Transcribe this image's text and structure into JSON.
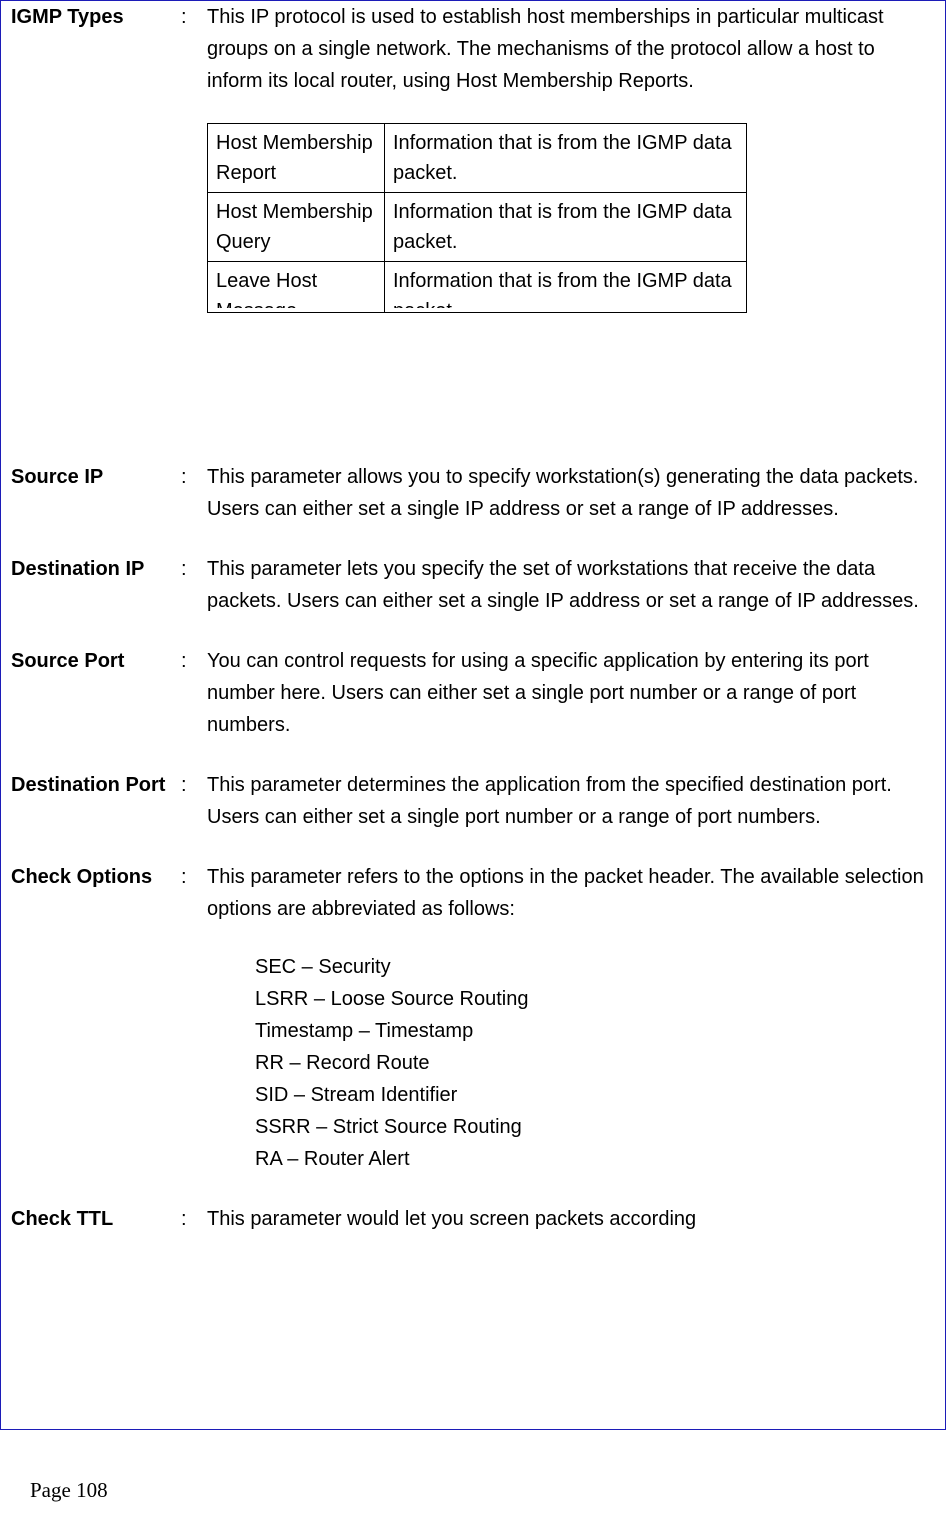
{
  "definitions": {
    "igmpTypes": {
      "label": "IGMP Types",
      "text": "This IP protocol is used to establish host memberships in particular multicast groups on a single network. The mechanisms of the protocol allow a host to inform its local router, using Host Membership Reports.",
      "table": {
        "rows": [
          {
            "c1": "Host Membership Report",
            "c2": "Information that is from the IGMP data packet."
          },
          {
            "c1": "Host Membership Query",
            "c2": "Information that is from the IGMP data packet."
          },
          {
            "c1": "Leave Host Message",
            "c2": "Information that is from the IGMP data packet."
          }
        ]
      }
    },
    "sourceIp": {
      "label": "Source IP",
      "text": "This parameter allows you to specify workstation(s) generating the data packets. Users can either set a single IP address or set a range of IP addresses."
    },
    "destIp": {
      "label": "Destination IP",
      "text": "This parameter lets you specify the set of workstations that receive the data packets. Users can either set a single IP address or set a range of IP addresses."
    },
    "sourcePort": {
      "label": "Source Port",
      "text": "You can control requests for using a specific application by entering its port number here. Users can either set a single port number or a range of port numbers."
    },
    "destPort": {
      "label": "Destination Port",
      "text": "This parameter determines the application from the specified destination port. Users can either set a single port number or a range of port numbers."
    },
    "checkOptions": {
      "label": "Check Options",
      "text": "This parameter refers to the options in the packet header. The available selection options are abbreviated as follows:",
      "list": [
        "SEC – Security",
        "LSRR – Loose Source Routing",
        "Timestamp – Timestamp",
        "RR – Record Route",
        "SID – Stream Identifier",
        "SSRR – Strict Source Routing",
        "RA – Router Alert"
      ]
    },
    "checkTtl": {
      "label": "Check TTL",
      "text": "This parameter would let you screen packets according"
    }
  },
  "footer": "Page 108",
  "colors": {
    "border": "#1c1cb8",
    "text": "#000000",
    "background": "#ffffff"
  }
}
